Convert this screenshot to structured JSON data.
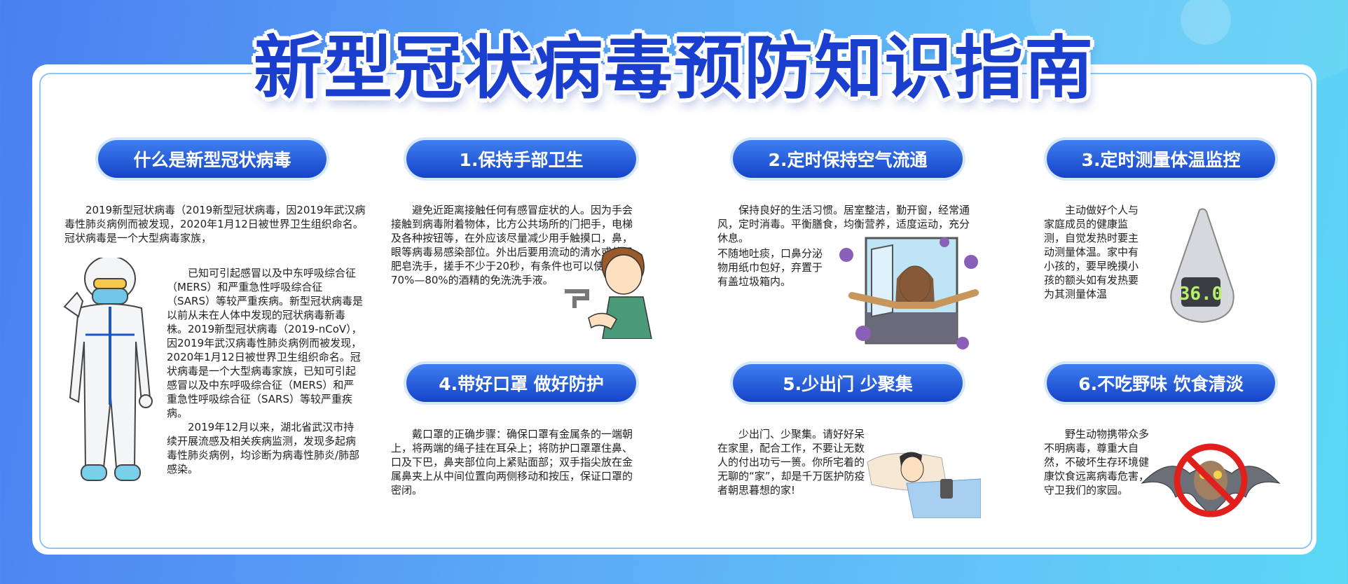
{
  "title": "新型冠状病毒预防知识指南",
  "colors": {
    "accent": "#1543c8",
    "title": "#1a3fcf",
    "border": "#8fc6f4"
  },
  "sections": {
    "intro": {
      "heading": "什么是新型冠状病毒",
      "p1": "2019新型冠状病毒（2019新型冠状病毒，因2019年武汉病毒性肺炎病例而被发现，2020年1月12日被世界卫生组织命名。冠状病毒是一个大型病毒家族，",
      "p2": "已知可引起感冒以及中东呼吸综合征（MERS）和严重急性呼吸综合征（SARS）等较严重疾病。新型冠状病毒是以前从未在人体中发现的冠状病毒新毒株。2019新型冠状病毒（2019-nCoV），因2019年武汉病毒性肺炎病例而被发现，2020年1月12日被世界卫生组织命名。冠状病毒是一个大型病毒家族，已知可引起感冒以及中东呼吸综合征（MERS）和严重急性呼吸综合征（SARS）等较严重疾病。",
      "p3": "2019年12月以来，湖北省武汉市持续开展流感及相关疾病监测，发现多起病毒性肺炎病例，均诊断为病毒性肺炎/肺部感染。"
    },
    "s1": {
      "heading": "1.保持手部卫生",
      "p1": "避免近距离接触任何有感冒症状的人。因为手会接触到病毒附着物体，比方公共场所的门把手，电梯及各种按钮等，在外应该尽量减少用手触摸口，鼻，眼等病毒易感染部位。外出后要用流动的清水或使用肥皂洗手，搓手不少于20秒，有条件也可以使用含70%—80%的酒精的免洗洗手液。"
    },
    "s2": {
      "heading": "2.定时保持空气流通",
      "p1": "保持良好的生活习惯。居室整洁，勤开窗，经常通风，定时消毒。平衡膳食，均衡营养，适度运动，充分休息。",
      "p2": "不随地吐痰，口鼻分泌物用纸巾包好，弃置于有盖垃圾箱内。"
    },
    "s3": {
      "heading": "3.定时测量体温监控",
      "p1": "主动做好个人与家庭成员的健康监测，自觉发热时要主动测量体温。家中有小孩的，要早晚摸小孩的额头如有发热要为其测量体温",
      "thermo": "36.0"
    },
    "s4": {
      "heading": "4.带好口罩 做好防护",
      "p1": "戴口罩的正确步骤：确保口罩有金属条的一端朝上，将两端的绳子挂在耳朵上；将防护口罩罩住鼻、口及下巴，鼻夹部位向上紧贴面部；双手指尖放在金属鼻夹上从中间位置向两侧移动和按压，保证口罩的密闭。"
    },
    "s5": {
      "heading": "5.少出门 少聚集",
      "p1": "少出门、少聚集。请好好呆在家里，配合工作，不要让无数人的付出功亏一篑。你所宅着的无聊的“家”，却是千万医护防疫者朝思暮想的家!"
    },
    "s6": {
      "heading": "6.不吃野味 饮食清淡",
      "p1": "野生动物携带众多不明病毒，尊重大自然，不破坏生存环境健康饮食远离病毒危害，守卫我们的家园。"
    }
  }
}
